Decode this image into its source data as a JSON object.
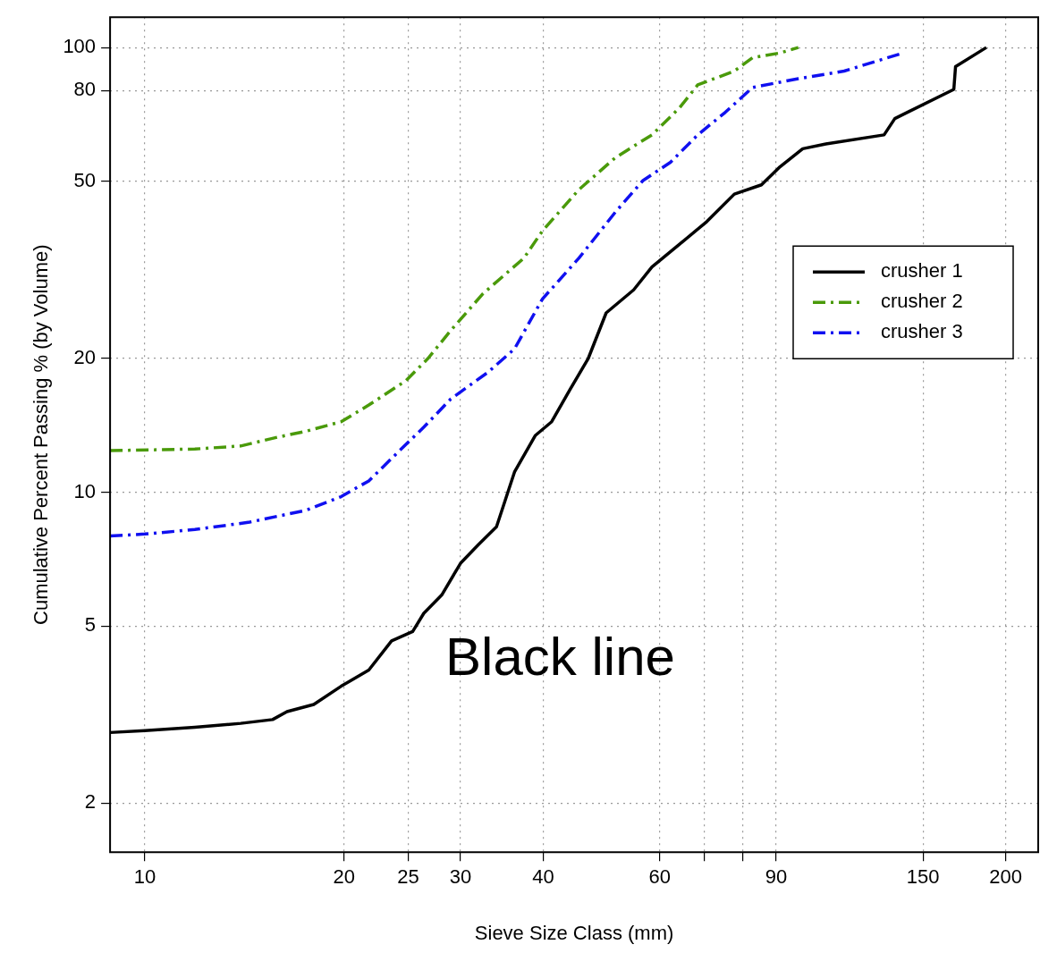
{
  "chart_data": {
    "type": "line",
    "xlabel": "Sieve Size Class (mm)",
    "ylabel": "Cumulative Percent Passing % (by Volume)",
    "log": "xy",
    "grid": true,
    "legend": "top right",
    "annotations": [
      "Black line"
    ],
    "xlim": [
      8.86,
      224
    ],
    "ylim": [
      1.55,
      117
    ],
    "xticks": [
      10,
      20,
      25,
      30,
      40,
      60,
      {
        "value": 70,
        "label": null
      },
      {
        "value": 80,
        "label": null
      },
      90,
      150,
      200
    ],
    "yticks": [
      2,
      5,
      10,
      20,
      50,
      80,
      100
    ],
    "series": [
      {
        "name": "crusher 1",
        "color": "#000000",
        "line_style": "solid",
        "x": [
          8.86,
          10,
          11.9,
          13.96,
          15.6,
          16.4,
          18.0,
          19.8,
          21.8,
          23.6,
          25.4,
          26.4,
          28.1,
          30.0,
          31.9,
          34.0,
          36.2,
          38.9,
          41.2,
          43.9,
          46.8,
          49.8,
          54.8,
          58.4,
          64.3,
          70.7,
          77.8,
          85.5,
          91.2,
          98.7,
          107,
          131,
          136,
          167,
          168,
          187
        ],
        "values": [
          2.88,
          2.91,
          2.96,
          3.02,
          3.08,
          3.21,
          3.33,
          3.66,
          3.98,
          4.63,
          4.86,
          5.34,
          5.87,
          6.92,
          7.61,
          8.36,
          11.1,
          13.4,
          14.4,
          17.0,
          20.0,
          25.3,
          28.5,
          32.1,
          36.1,
          40.6,
          46.8,
          49.1,
          53.9,
          59.2,
          60.7,
          63.6,
          69.2,
          80.5,
          90.6,
          100
        ]
      },
      {
        "name": "crusher 2",
        "color": "#4a9a0a",
        "line_style": "dashed",
        "x": [
          8.86,
          11.9,
          13.96,
          15.9,
          17.5,
          19.8,
          21.8,
          24.8,
          26.8,
          29.0,
          32.4,
          37.4,
          39.9,
          45.3,
          51.4,
          58.4,
          64.3,
          68.5,
          77.8,
          82.9,
          91.2,
          97.2
        ],
        "values": [
          12.4,
          12.5,
          12.7,
          13.3,
          13.7,
          14.4,
          15.7,
          17.8,
          20.0,
          23.1,
          27.9,
          33.6,
          38.7,
          47.9,
          56.5,
          63.6,
          73.2,
          82.4,
          88.5,
          94.9,
          97.2,
          100
        ]
      },
      {
        "name": "crusher 3",
        "color": "#1010f0",
        "line_style": "dashed",
        "x": [
          8.86,
          10,
          11.9,
          14.4,
          17.5,
          19.8,
          21.8,
          24.0,
          26.4,
          29.0,
          33.0,
          36.2,
          39.9,
          45.3,
          51.4,
          56.6,
          62.3,
          68.5,
          75.4,
          82.9,
          97.2,
          114,
          140
        ],
        "values": [
          7.97,
          8.05,
          8.24,
          8.56,
          9.1,
          9.77,
          10.6,
          12.2,
          14.0,
          16.2,
          18.6,
          21.0,
          27.2,
          33.6,
          42.6,
          50.2,
          55.2,
          63.6,
          71.5,
          81.3,
          85.1,
          88.5,
          97.2
        ]
      }
    ]
  }
}
